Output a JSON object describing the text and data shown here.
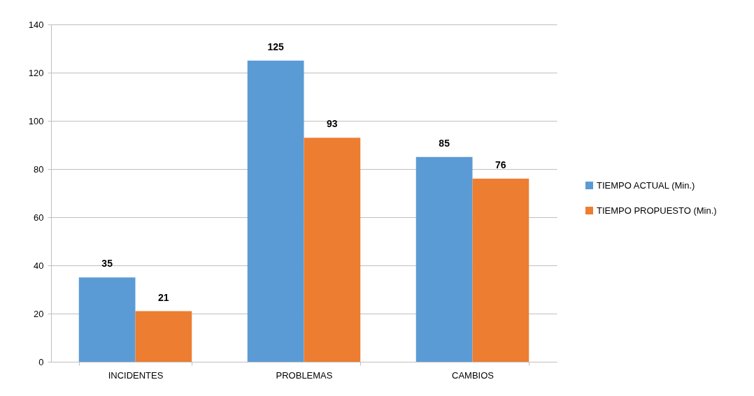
{
  "chart_data": {
    "type": "bar",
    "categories": [
      "INCIDENTES",
      "PROBLEMAS",
      "CAMBIOS"
    ],
    "series": [
      {
        "name": "TIEMPO ACTUAL (Min.)",
        "color": "#5b9bd5",
        "values": [
          35,
          125,
          85
        ]
      },
      {
        "name": "TIEMPO PROPUESTO (Min.)",
        "color": "#ed7d31",
        "values": [
          21,
          93,
          76
        ]
      }
    ],
    "ylim": [
      0,
      140
    ],
    "yticks": [
      0,
      20,
      40,
      60,
      80,
      100,
      120,
      140
    ],
    "grid": "y",
    "legend": "right",
    "data_labels": true
  }
}
